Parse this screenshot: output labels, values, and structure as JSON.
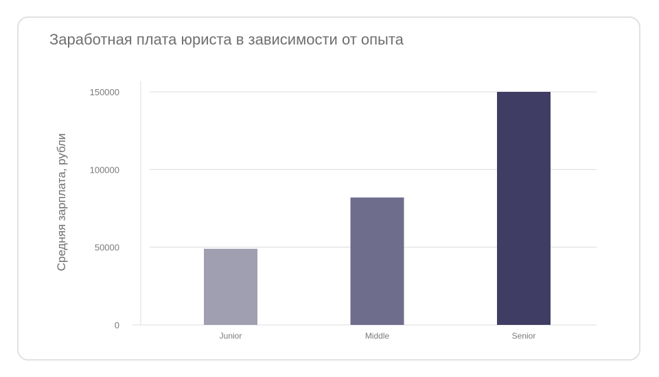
{
  "chart_data": {
    "type": "bar",
    "title": "Заработная плата юриста в зависимости от опыта",
    "xlabel": "",
    "ylabel": "Средняя зарплата, рубли",
    "categories": [
      "Junior",
      "Middle",
      "Senior"
    ],
    "values": [
      49000,
      82000,
      150000
    ],
    "colors": [
      "#a09fb1",
      "#6e6d8c",
      "#3f3d64"
    ],
    "ylim": [
      0,
      150000
    ],
    "yticks": [
      0,
      50000,
      100000,
      150000
    ],
    "grid": true,
    "legend": "none"
  }
}
